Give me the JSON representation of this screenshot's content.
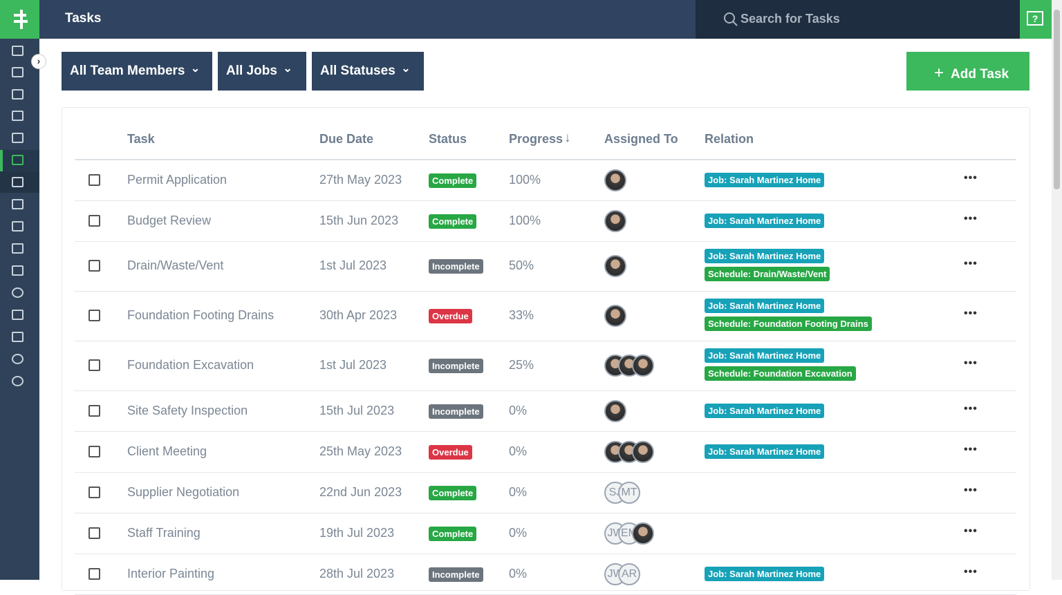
{
  "header": {
    "title": "Tasks",
    "search_placeholder": "Search for Tasks"
  },
  "filters": [
    "All Team Members",
    "All Jobs",
    "All Statuses"
  ],
  "add_button": "Add Task",
  "table": {
    "columns": [
      "Task",
      "Due Date",
      "Status",
      "Progress",
      "Assigned To",
      "Relation"
    ],
    "rows": [
      {
        "task": "Permit Application",
        "due": "27th May 2023",
        "status": {
          "label": "Complete",
          "color": "#28a745"
        },
        "progress": "100%",
        "assignees": [
          null
        ],
        "relations": [
          {
            "label": "Job: Sarah Martinez Home",
            "color": "#17a2b8"
          }
        ]
      },
      {
        "task": "Budget Review",
        "due": "15th Jun 2023",
        "status": {
          "label": "Complete",
          "color": "#28a745"
        },
        "progress": "100%",
        "assignees": [
          null
        ],
        "relations": [
          {
            "label": "Job: Sarah Martinez Home",
            "color": "#17a2b8"
          }
        ]
      },
      {
        "task": "Drain/Waste/Vent",
        "due": "1st Jul 2023",
        "status": {
          "label": "Incomplete",
          "color": "#6c757d"
        },
        "progress": "50%",
        "assignees": [
          null
        ],
        "relations": [
          {
            "label": "Job: Sarah Martinez Home",
            "color": "#17a2b8"
          },
          {
            "label": "Schedule: Drain/Waste/Vent",
            "color": "#28a745"
          }
        ]
      },
      {
        "task": "Foundation Footing Drains",
        "due": "30th Apr 2023",
        "status": {
          "label": "Overdue",
          "color": "#dc3545"
        },
        "progress": "33%",
        "assignees": [
          null
        ],
        "relations": [
          {
            "label": "Job: Sarah Martinez Home",
            "color": "#17a2b8"
          },
          {
            "label": "Schedule: Foundation Footing Drains",
            "color": "#28a745"
          }
        ]
      },
      {
        "task": "Foundation Excavation",
        "due": "1st Jul 2023",
        "status": {
          "label": "Incomplete",
          "color": "#6c757d"
        },
        "progress": "25%",
        "assignees": [
          null,
          null,
          null
        ],
        "relations": [
          {
            "label": "Job: Sarah Martinez Home",
            "color": "#17a2b8"
          },
          {
            "label": "Schedule: Foundation Excavation",
            "color": "#28a745"
          }
        ]
      },
      {
        "task": "Site Safety Inspection",
        "due": "15th Jul 2023",
        "status": {
          "label": "Incomplete",
          "color": "#6c757d"
        },
        "progress": "0%",
        "assignees": [
          null
        ],
        "relations": [
          {
            "label": "Job: Sarah Martinez Home",
            "color": "#17a2b8"
          }
        ]
      },
      {
        "task": "Client Meeting",
        "due": "25th May 2023",
        "status": {
          "label": "Overdue",
          "color": "#dc3545"
        },
        "progress": "0%",
        "assignees": [
          null,
          null,
          null
        ],
        "relations": [
          {
            "label": "Job: Sarah Martinez Home",
            "color": "#17a2b8"
          }
        ]
      },
      {
        "task": "Supplier Negotiation",
        "due": "22nd Jun 2023",
        "status": {
          "label": "Complete",
          "color": "#28a745"
        },
        "progress": "0%",
        "assignees": [
          "SJ",
          "MT"
        ],
        "relations": []
      },
      {
        "task": "Staff Training",
        "due": "19th Jul 2023",
        "status": {
          "label": "Complete",
          "color": "#28a745"
        },
        "progress": "0%",
        "assignees": [
          "JW",
          "EM",
          null
        ],
        "relations": []
      },
      {
        "task": "Interior Painting",
        "due": "28th Jul 2023",
        "status": {
          "label": "Incomplete",
          "color": "#6c757d"
        },
        "progress": "0%",
        "assignees": [
          "JW",
          "AR"
        ],
        "relations": [
          {
            "label": "Job: Sarah Martinez Home",
            "color": "#17a2b8"
          }
        ]
      }
    ]
  }
}
